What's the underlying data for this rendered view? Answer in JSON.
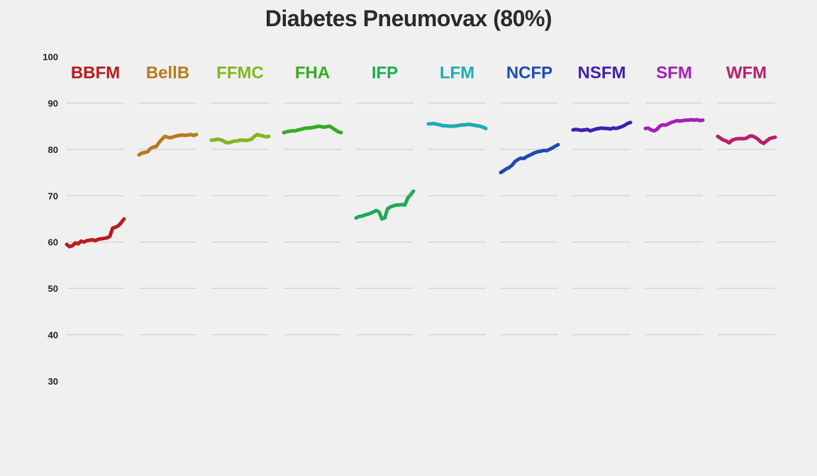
{
  "chart_data": {
    "type": "line",
    "title": "Diabetes Pneumovax (80%)",
    "xlabel": "",
    "ylabel": "",
    "ylim": [
      30,
      100
    ],
    "yticks": [
      100,
      90,
      80,
      70,
      60,
      50,
      40,
      30
    ],
    "grid": true,
    "layout": "small-multiples",
    "series": [
      {
        "name": "BBFM",
        "color": "#b91c1c",
        "values": [
          59.5,
          59.0,
          59.2,
          59.8,
          59.6,
          60.2,
          60.0,
          60.3,
          60.4,
          60.5,
          60.3,
          60.6,
          60.7,
          60.8,
          60.9,
          61.2,
          63.0,
          63.2,
          63.5,
          64.2,
          65.0
        ]
      },
      {
        "name": "BellB",
        "color": "#b8791f",
        "values": [
          78.8,
          79.2,
          79.3,
          79.5,
          80.2,
          80.5,
          80.6,
          81.5,
          82.2,
          82.8,
          82.6,
          82.5,
          82.7,
          82.9,
          83.0,
          83.1,
          83.0,
          83.1,
          83.2,
          83.0,
          83.2
        ]
      },
      {
        "name": "FFMC",
        "color": "#86b41f",
        "values": [
          82.0,
          82.0,
          82.2,
          82.1,
          81.9,
          81.5,
          81.4,
          81.6,
          81.8,
          81.8,
          82.0,
          82.0,
          81.9,
          82.0,
          82.2,
          82.8,
          83.2,
          83.0,
          82.9,
          82.7,
          82.8
        ]
      },
      {
        "name": "FHA",
        "color": "#35ab1f",
        "values": [
          83.6,
          83.8,
          83.9,
          84.0,
          84.0,
          84.2,
          84.3,
          84.5,
          84.6,
          84.6,
          84.7,
          84.8,
          85.0,
          84.9,
          84.8,
          84.9,
          85.0,
          84.6,
          84.2,
          83.8,
          83.6
        ]
      },
      {
        "name": "IFP",
        "color": "#1fab55",
        "values": [
          65.2,
          65.5,
          65.6,
          65.8,
          66.0,
          66.2,
          66.5,
          66.8,
          66.5,
          65.0,
          65.2,
          67.2,
          67.6,
          67.8,
          68.0,
          68.0,
          68.1,
          68.0,
          69.5,
          70.2,
          71.0
        ]
      },
      {
        "name": "LFM",
        "color": "#1fabb2",
        "values": [
          85.5,
          85.5,
          85.6,
          85.4,
          85.3,
          85.1,
          85.1,
          85.0,
          85.0,
          85.0,
          85.1,
          85.2,
          85.3,
          85.3,
          85.4,
          85.3,
          85.2,
          85.1,
          85.0,
          84.8,
          84.5
        ]
      },
      {
        "name": "NCFP",
        "color": "#1f4ab2",
        "values": [
          75.0,
          75.4,
          75.8,
          76.1,
          76.6,
          77.4,
          77.8,
          78.1,
          78.0,
          78.4,
          78.7,
          79.0,
          79.3,
          79.5,
          79.6,
          79.8,
          79.7,
          80.0,
          80.3,
          80.7,
          81.0
        ]
      },
      {
        "name": "NSFM",
        "color": "#3f1fb2",
        "values": [
          84.2,
          84.3,
          84.2,
          84.1,
          84.2,
          84.3,
          84.0,
          84.2,
          84.4,
          84.5,
          84.6,
          84.5,
          84.5,
          84.4,
          84.6,
          84.5,
          84.7,
          84.9,
          85.2,
          85.6,
          85.8
        ]
      },
      {
        "name": "SFM",
        "color": "#a51fb8",
        "values": [
          84.5,
          84.6,
          84.2,
          84.0,
          84.3,
          85.0,
          85.3,
          85.2,
          85.5,
          85.8,
          86.0,
          86.2,
          86.1,
          86.2,
          86.3,
          86.3,
          86.4,
          86.3,
          86.4,
          86.2,
          86.3
        ]
      },
      {
        "name": "WFM",
        "color": "#b81f6a",
        "values": [
          82.8,
          82.4,
          82.0,
          81.8,
          81.4,
          82.0,
          82.2,
          82.3,
          82.3,
          82.3,
          82.4,
          82.8,
          82.9,
          82.6,
          82.2,
          81.6,
          81.3,
          81.8,
          82.3,
          82.5,
          82.6
        ]
      }
    ]
  }
}
